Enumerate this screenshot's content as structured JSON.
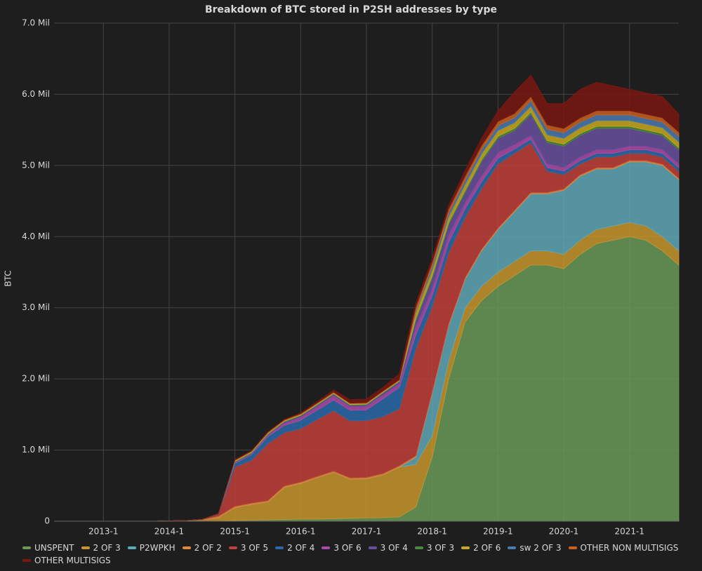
{
  "chart_data": {
    "type": "stacked_area",
    "title": "Breakdown of BTC stored in P2SH addresses by type",
    "y_label": "BTC",
    "x": [
      "2012-4",
      "2012-7",
      "2012-10",
      "2013-1",
      "2013-4",
      "2013-7",
      "2013-10",
      "2014-1",
      "2014-4",
      "2014-7",
      "2014-10",
      "2015-1",
      "2015-4",
      "2015-7",
      "2015-10",
      "2016-1",
      "2016-4",
      "2016-7",
      "2016-10",
      "2017-1",
      "2017-4",
      "2017-7",
      "2017-10",
      "2018-1",
      "2018-4",
      "2018-7",
      "2018-10",
      "2019-1",
      "2019-4",
      "2019-7",
      "2019-10",
      "2020-1",
      "2020-4",
      "2020-7",
      "2020-10",
      "2021-1",
      "2021-4",
      "2021-7",
      "2021-10"
    ],
    "xlim": [
      "2012-4",
      "2021-10"
    ],
    "xticks": [
      "2013-1",
      "2014-1",
      "2015-1",
      "2016-1",
      "2017-1",
      "2018-1",
      "2019-1",
      "2020-1",
      "2021-1"
    ],
    "ylim": [
      0,
      7000000
    ],
    "yticks": [
      0,
      {
        "value": 1000000,
        "label": "1.0 Mil"
      },
      {
        "value": 2000000,
        "label": "2.0 Mil"
      },
      {
        "value": 3000000,
        "label": "3.0 Mil"
      },
      {
        "value": 4000000,
        "label": "4.0 Mil"
      },
      {
        "value": 5000000,
        "label": "5.0 Mil"
      },
      {
        "value": 6000000,
        "label": "6.0 Mil"
      },
      {
        "value": 7000000,
        "label": "7.0 Mil"
      }
    ],
    "grid": true,
    "series": [
      {
        "name": "UNSPENT",
        "color": "#6a9a58",
        "values": [
          0,
          0,
          0,
          0,
          0,
          0,
          0,
          0,
          0,
          0,
          0,
          10000,
          15000,
          20000,
          25000,
          30000,
          30000,
          35000,
          40000,
          45000,
          50000,
          60000,
          200000,
          900000,
          2000000,
          2800000,
          3100000,
          3300000,
          3450000,
          3600000,
          3600000,
          3550000,
          3750000,
          3900000,
          3950000,
          4000000,
          3950000,
          3800000,
          3600000
        ]
      },
      {
        "name": "2 OF 3",
        "color": "#c8962e",
        "values": [
          0,
          0,
          0,
          0,
          0,
          0,
          0,
          5000,
          10000,
          20000,
          50000,
          180000,
          220000,
          250000,
          450000,
          500000,
          580000,
          650000,
          550000,
          550000,
          600000,
          700000,
          600000,
          300000,
          250000,
          200000,
          200000,
          200000,
          200000,
          200000,
          200000,
          200000,
          200000,
          200000,
          200000,
          200000,
          200000,
          200000,
          200000
        ]
      },
      {
        "name": "P2WPKH",
        "color": "#5fa8b8",
        "values": [
          0,
          0,
          0,
          0,
          0,
          0,
          0,
          0,
          0,
          0,
          0,
          0,
          0,
          0,
          0,
          0,
          0,
          0,
          0,
          0,
          0,
          0,
          100000,
          600000,
          500000,
          400000,
          500000,
          600000,
          700000,
          800000,
          800000,
          900000,
          900000,
          850000,
          800000,
          850000,
          900000,
          1000000,
          1000000
        ]
      },
      {
        "name": "2 OF 2",
        "color": "#e08a3c",
        "values": [
          0,
          0,
          0,
          0,
          0,
          0,
          0,
          0,
          0,
          0,
          20000,
          20000,
          20000,
          20000,
          20000,
          20000,
          20000,
          20000,
          20000,
          20000,
          20000,
          20000,
          20000,
          20000,
          20000,
          20000,
          20000,
          20000,
          20000,
          20000,
          20000,
          20000,
          20000,
          20000,
          20000,
          20000,
          20000,
          20000,
          20000
        ]
      },
      {
        "name": "3 OF 5",
        "color": "#c0403a",
        "values": [
          0,
          0,
          0,
          0,
          0,
          0,
          0,
          0,
          0,
          5000,
          30000,
          550000,
          600000,
          800000,
          750000,
          750000,
          800000,
          850000,
          800000,
          800000,
          800000,
          800000,
          1500000,
          1200000,
          1000000,
          850000,
          850000,
          900000,
          800000,
          700000,
          300000,
          200000,
          150000,
          150000,
          150000,
          100000,
          100000,
          100000,
          100000
        ]
      },
      {
        "name": "2 OF 4",
        "color": "#2a6aa8",
        "values": [
          0,
          0,
          0,
          0,
          0,
          0,
          0,
          0,
          0,
          0,
          5000,
          50000,
          80000,
          100000,
          100000,
          120000,
          130000,
          150000,
          150000,
          150000,
          250000,
          300000,
          200000,
          150000,
          150000,
          120000,
          100000,
          80000,
          60000,
          50000,
          50000,
          50000,
          50000,
          50000,
          50000,
          50000,
          50000,
          50000,
          50000
        ]
      },
      {
        "name": "3 OF 6",
        "color": "#b04aa8",
        "values": [
          0,
          0,
          0,
          0,
          0,
          0,
          0,
          0,
          0,
          0,
          0,
          10000,
          10000,
          20000,
          30000,
          40000,
          50000,
          60000,
          50000,
          50000,
          50000,
          50000,
          100000,
          100000,
          100000,
          80000,
          80000,
          80000,
          60000,
          50000,
          50000,
          50000,
          50000,
          50000,
          50000,
          50000,
          50000,
          50000,
          50000
        ]
      },
      {
        "name": "3 OF 4",
        "color": "#6a50a0",
        "values": [
          0,
          0,
          0,
          0,
          0,
          0,
          0,
          0,
          0,
          0,
          0,
          10000,
          10000,
          10000,
          20000,
          20000,
          20000,
          20000,
          20000,
          20000,
          30000,
          30000,
          100000,
          150000,
          150000,
          150000,
          200000,
          200000,
          200000,
          300000,
          300000,
          300000,
          300000,
          300000,
          300000,
          250000,
          200000,
          200000,
          200000
        ]
      },
      {
        "name": "3 OF 3",
        "color": "#4a8a3a",
        "values": [
          0,
          0,
          0,
          0,
          0,
          0,
          0,
          0,
          0,
          0,
          0,
          10000,
          10000,
          10000,
          10000,
          10000,
          10000,
          10000,
          10000,
          10000,
          10000,
          10000,
          30000,
          30000,
          30000,
          30000,
          30000,
          30000,
          30000,
          30000,
          30000,
          30000,
          30000,
          30000,
          30000,
          30000,
          30000,
          30000,
          30000
        ]
      },
      {
        "name": "2 OF 6",
        "color": "#c8a820",
        "values": [
          0,
          0,
          0,
          0,
          0,
          0,
          0,
          0,
          0,
          0,
          0,
          10000,
          10000,
          10000,
          10000,
          10000,
          10000,
          10000,
          10000,
          10000,
          10000,
          10000,
          80000,
          80000,
          80000,
          80000,
          80000,
          80000,
          80000,
          80000,
          80000,
          80000,
          80000,
          80000,
          80000,
          80000,
          80000,
          80000,
          80000
        ]
      },
      {
        "name": "sw 2 OF 3",
        "color": "#4a7ab0",
        "values": [
          0,
          0,
          0,
          0,
          0,
          0,
          0,
          0,
          0,
          0,
          0,
          0,
          0,
          0,
          0,
          0,
          0,
          0,
          0,
          0,
          0,
          0,
          20000,
          50000,
          50000,
          60000,
          60000,
          70000,
          70000,
          80000,
          80000,
          80000,
          80000,
          80000,
          80000,
          80000,
          80000,
          80000,
          80000
        ]
      },
      {
        "name": "OTHER NON MULTISIGS",
        "color": "#c86020",
        "values": [
          0,
          0,
          0,
          0,
          0,
          0,
          0,
          0,
          0,
          0,
          0,
          10000,
          10000,
          10000,
          10000,
          10000,
          10000,
          10000,
          10000,
          10000,
          10000,
          10000,
          60000,
          60000,
          60000,
          60000,
          60000,
          60000,
          60000,
          60000,
          60000,
          60000,
          60000,
          60000,
          60000,
          60000,
          60000,
          60000,
          60000
        ]
      },
      {
        "name": "OTHER MULTISIGS",
        "color": "#7a1810",
        "values": [
          0,
          0,
          0,
          0,
          0,
          0,
          0,
          0,
          0,
          0,
          0,
          5000,
          5000,
          5000,
          5000,
          10000,
          20000,
          30000,
          50000,
          50000,
          50000,
          80000,
          50000,
          50000,
          50000,
          80000,
          100000,
          150000,
          300000,
          300000,
          300000,
          350000,
          400000,
          400000,
          350000,
          300000,
          300000,
          300000,
          250000
        ]
      }
    ]
  }
}
